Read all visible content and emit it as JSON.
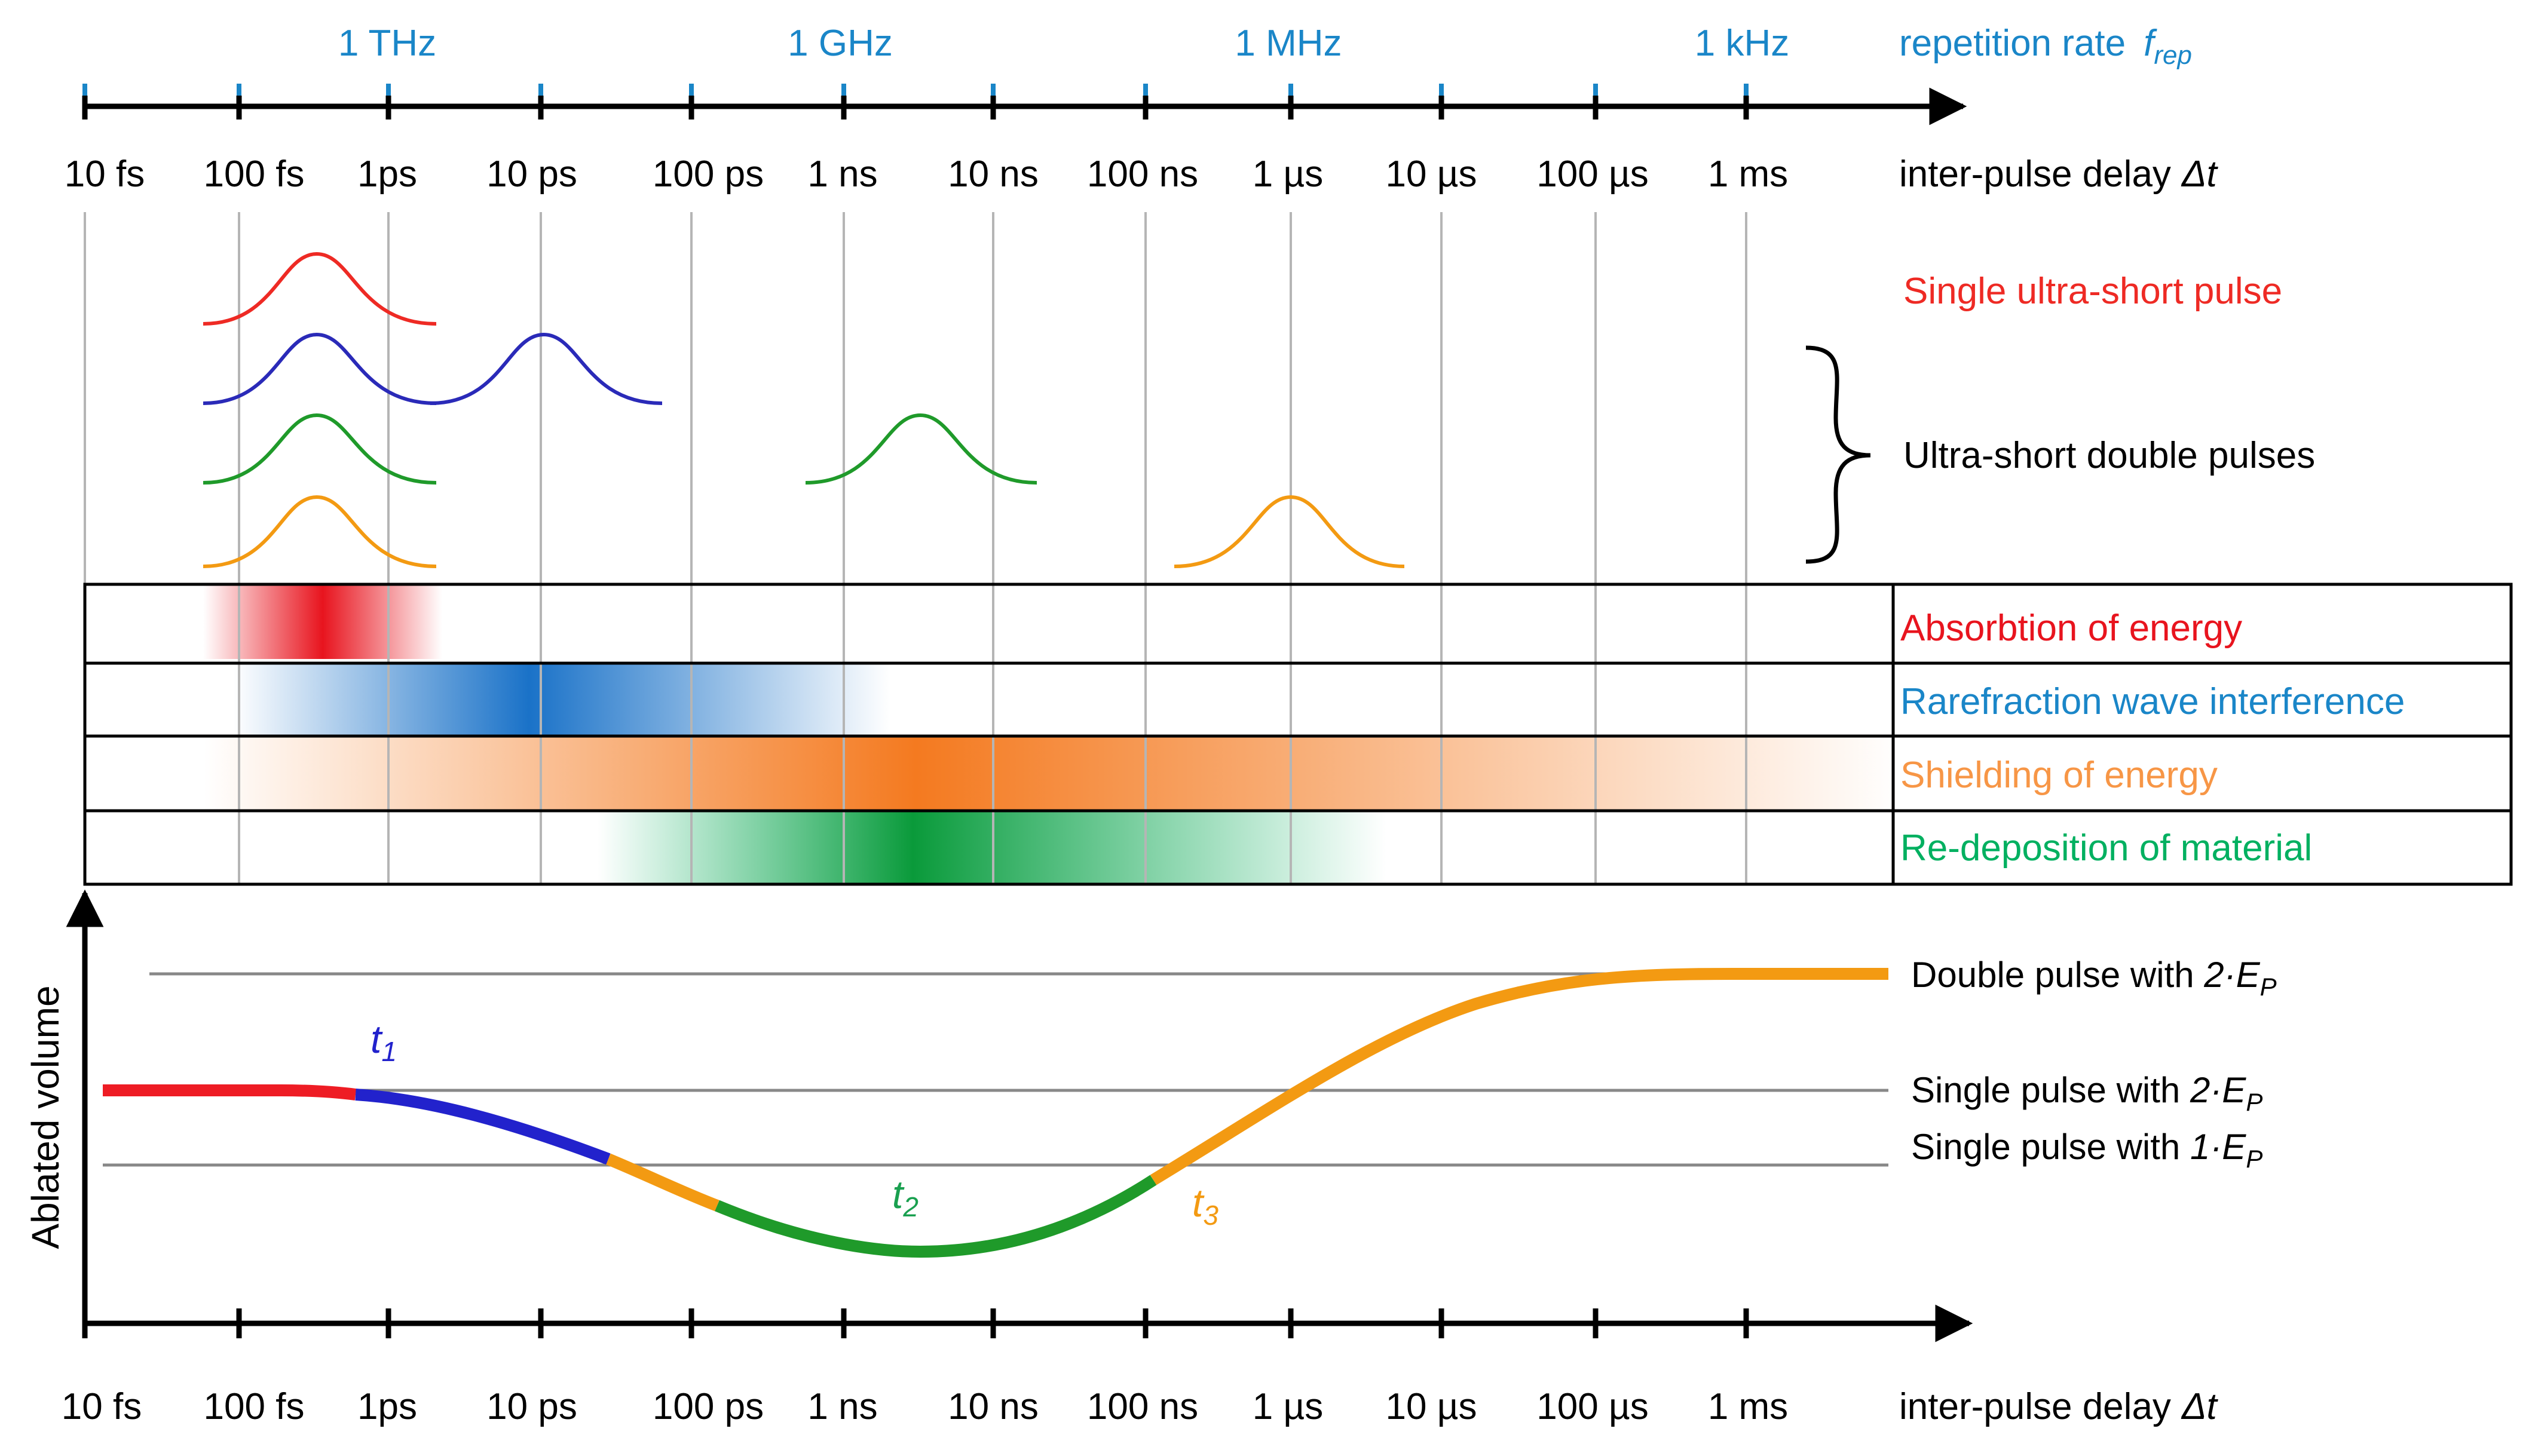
{
  "top_axis": {
    "frequency_ticks": [
      "1 THz",
      "1 GHz",
      "1 MHz",
      "1 kHz"
    ],
    "frequency_label": "repetition rate",
    "frequency_symbol": "f",
    "frequency_symbol_sub": "rep",
    "delay_ticks": [
      "10 fs",
      "100 fs",
      "1ps",
      "10 ps",
      "100 ps",
      "1 ns",
      "10 ns",
      "100 ns",
      "1 µs",
      "10 µs",
      "100 µs",
      "1 ms"
    ],
    "delay_label": "inter-pulse delay",
    "delay_symbol": "Δt"
  },
  "pulses": {
    "single_label": "Single ultra-short pulse",
    "double_label": "Ultra-short double pulses",
    "colors": {
      "single": "#ee2a24",
      "blue": "#2a2ab8",
      "green": "#1f9a2a",
      "orange": "#f39a12"
    }
  },
  "effects": [
    {
      "label": "Absorbtion of energy",
      "color": "#e8141e"
    },
    {
      "label": "Rarefraction wave interference",
      "color": "#1a72c8"
    },
    {
      "label": "Shielding of energy",
      "color": "#f47a20"
    },
    {
      "label": "Re-deposition of material",
      "color": "#00b060"
    }
  ],
  "ablation_chart": {
    "ylabel": "Ablated volume",
    "levels": [
      {
        "label_prefix": "Double pulse with ",
        "label_factor": "2·E",
        "label_sub": "P"
      },
      {
        "label_prefix": "Single pulse with ",
        "label_factor": "2·E",
        "label_sub": "P"
      },
      {
        "label_prefix": "Single pulse with ",
        "label_factor": "1·E",
        "label_sub": "P"
      }
    ],
    "time_markers": [
      {
        "symbol": "t",
        "sub": "1",
        "color": "#2222cc"
      },
      {
        "symbol": "t",
        "sub": "2",
        "color": "#1aa050"
      },
      {
        "symbol": "t",
        "sub": "3",
        "color": "#f39a12"
      }
    ],
    "curve_colors": {
      "red": "#ee1c24",
      "blue": "#2222cc",
      "orange": "#f39a12",
      "green": "#1f9a2a"
    },
    "x_ticks": [
      "10 fs",
      "100 fs",
      "1ps",
      "10 ps",
      "100 ps",
      "1 ns",
      "10 ns",
      "100 ns",
      "1 µs",
      "10 µs",
      "100 µs",
      "1 ms"
    ],
    "xlabel": "inter-pulse delay",
    "xsymbol": "Δt"
  }
}
